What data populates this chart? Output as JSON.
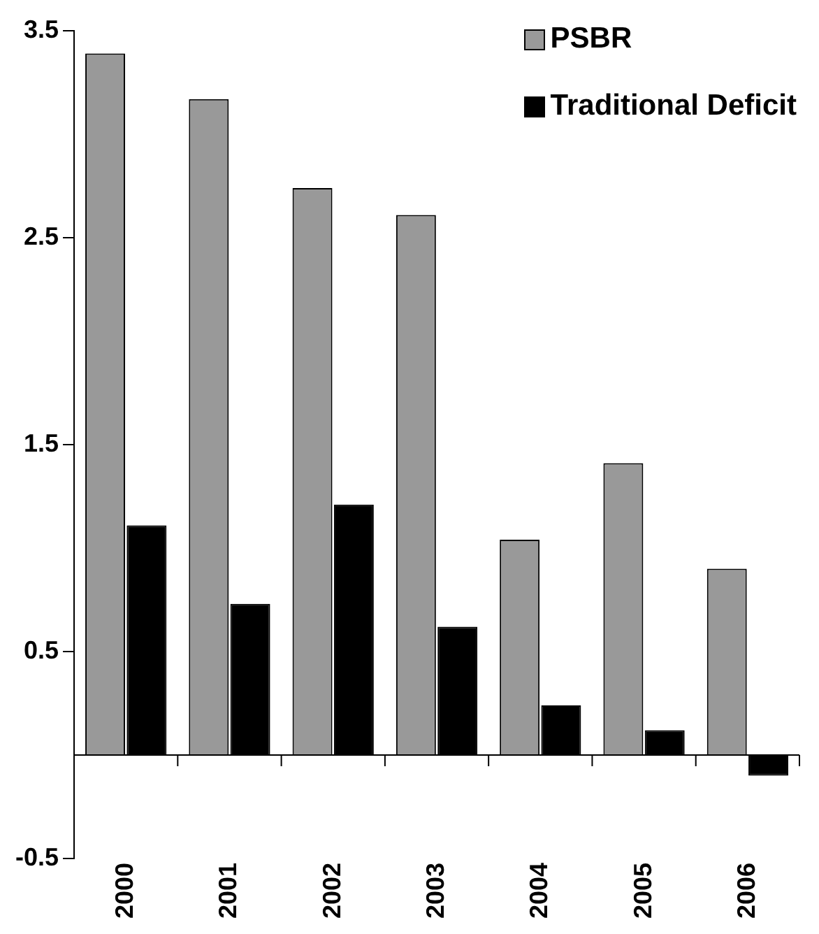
{
  "chart_data": {
    "type": "bar",
    "categories": [
      "2000",
      "2001",
      "2002",
      "2003",
      "2004",
      "2005",
      "2006"
    ],
    "series": [
      {
        "name": "PSBR",
        "color": "#999999",
        "values": [
          3.39,
          3.17,
          2.74,
          2.61,
          1.04,
          1.41,
          0.9
        ]
      },
      {
        "name": "Traditional Deficit",
        "color": "#000000",
        "values": [
          1.11,
          0.73,
          1.21,
          0.62,
          0.24,
          0.12,
          -0.1
        ]
      }
    ],
    "ylim": [
      -0.5,
      3.5
    ],
    "yticks": [
      {
        "value": 3.5,
        "label": "3.5"
      },
      {
        "value": 2.5,
        "label": "2.5"
      },
      {
        "value": 1.5,
        "label": "1.5"
      },
      {
        "value": 0.5,
        "label": "0.5"
      },
      {
        "value": -0.5,
        "label": "-0.5"
      }
    ],
    "grid": false,
    "legend": "top right"
  }
}
